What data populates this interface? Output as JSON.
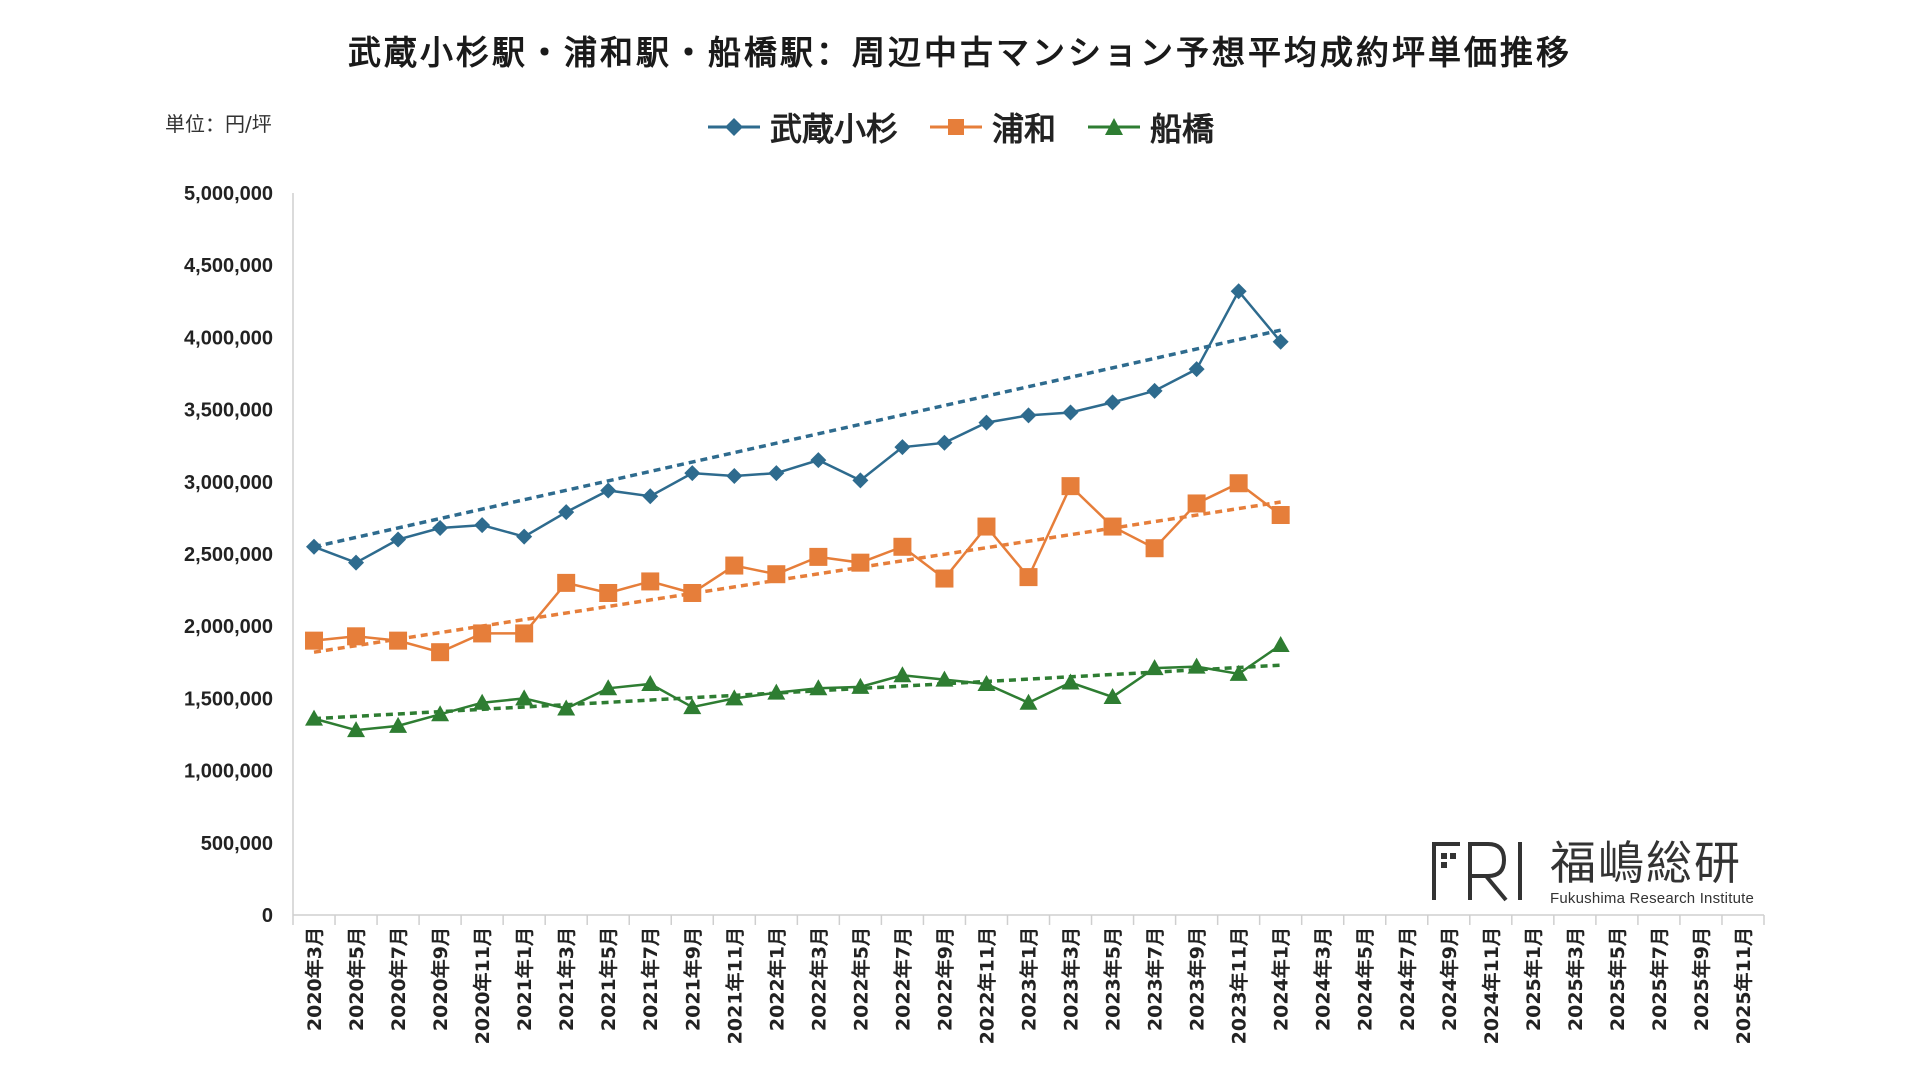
{
  "chart_data": {
    "type": "line",
    "title": "武蔵小杉駅・浦和駅・船橋駅：周辺中古マンション予想平均成約坪単価推移",
    "unit_label": "単位：円/坪",
    "ylim": [
      0,
      5000000
    ],
    "y_ticks": [
      "5,000,000",
      "4,500,000",
      "4,000,000",
      "3,500,000",
      "3,000,000",
      "2,500,000",
      "2,000,000",
      "1,500,000",
      "1,000,000",
      "500,000",
      "0"
    ],
    "y_tick_values": [
      5000000,
      4500000,
      4000000,
      3500000,
      3000000,
      2500000,
      2000000,
      1500000,
      1000000,
      500000,
      0
    ],
    "grid": false,
    "legend_position": "top-center",
    "trendlines": "linear, dotted",
    "categories": [
      "2020年3月",
      "2020年5月",
      "2020年7月",
      "2020年9月",
      "2020年11月",
      "2021年1月",
      "2021年3月",
      "2021年5月",
      "2021年7月",
      "2021年9月",
      "2021年11月",
      "2022年1月",
      "2022年3月",
      "2022年5月",
      "2022年7月",
      "2022年9月",
      "2022年11月",
      "2023年1月",
      "2023年3月",
      "2023年5月",
      "2023年7月",
      "2023年9月",
      "2023年11月",
      "2024年1月",
      "2024年3月",
      "2024年5月",
      "2024年7月",
      "2024年9月",
      "2024年11月",
      "2025年1月",
      "2025年3月",
      "2025年5月",
      "2025年7月",
      "2025年9月",
      "2025年11月"
    ],
    "series": [
      {
        "name": "武蔵小杉",
        "color": "#2e6b8e",
        "marker": "diamond",
        "points": [
          [
            0,
            2550000
          ],
          [
            1,
            2440000
          ],
          [
            2,
            2600000
          ],
          [
            3,
            2680000
          ],
          [
            4,
            2700000
          ],
          [
            5,
            2620000
          ],
          [
            6,
            2790000
          ],
          [
            7,
            2940000
          ],
          [
            8,
            2900000
          ],
          [
            9,
            3060000
          ],
          [
            10,
            3040000
          ],
          [
            11,
            3060000
          ],
          [
            12,
            3150000
          ],
          [
            13,
            3010000
          ],
          [
            14,
            3240000
          ],
          [
            15,
            3270000
          ],
          [
            16,
            3410000
          ],
          [
            17,
            3460000
          ],
          [
            18,
            3480000
          ],
          [
            19,
            3550000
          ],
          [
            20,
            3630000
          ],
          [
            21,
            3780000
          ],
          [
            22,
            4320000
          ],
          [
            23,
            3970000
          ]
        ],
        "trend": [
          2550000,
          4050000
        ]
      },
      {
        "name": "浦和",
        "color": "#e67e3a",
        "marker": "square",
        "points": [
          [
            0,
            1900000
          ],
          [
            1,
            1930000
          ],
          [
            2,
            1900000
          ],
          [
            3,
            1820000
          ],
          [
            4,
            1950000
          ],
          [
            5,
            1950000
          ],
          [
            6,
            2300000
          ],
          [
            7,
            2230000
          ],
          [
            8,
            2310000
          ],
          [
            9,
            2230000
          ],
          [
            10,
            2420000
          ],
          [
            11,
            2360000
          ],
          [
            12,
            2480000
          ],
          [
            13,
            2440000
          ],
          [
            14,
            2550000
          ],
          [
            15,
            2330000
          ],
          [
            16,
            2690000
          ],
          [
            17,
            2340000
          ],
          [
            18,
            2970000
          ],
          [
            19,
            2690000
          ],
          [
            20,
            2540000
          ],
          [
            21,
            2850000
          ],
          [
            22,
            2990000
          ],
          [
            23,
            2770000
          ]
        ],
        "trend": [
          1820000,
          2860000
        ]
      },
      {
        "name": "船橋",
        "color": "#2e7d32",
        "marker": "triangle",
        "points": [
          [
            0,
            1360000
          ],
          [
            1,
            1280000
          ],
          [
            2,
            1310000
          ],
          [
            3,
            1390000
          ],
          [
            4,
            1470000
          ],
          [
            5,
            1500000
          ],
          [
            6,
            1430000
          ],
          [
            7,
            1570000
          ],
          [
            8,
            1600000
          ],
          [
            9,
            1440000
          ],
          [
            10,
            1500000
          ],
          [
            11,
            1540000
          ],
          [
            12,
            1570000
          ],
          [
            13,
            1580000
          ],
          [
            14,
            1660000
          ],
          [
            15,
            1630000
          ],
          [
            16,
            1600000
          ],
          [
            17,
            1470000
          ],
          [
            18,
            1610000
          ],
          [
            19,
            1510000
          ],
          [
            20,
            1710000
          ],
          [
            21,
            1720000
          ],
          [
            22,
            1670000
          ],
          [
            23,
            1870000
          ]
        ],
        "trend": [
          1360000,
          1730000
        ]
      }
    ]
  },
  "logo": {
    "name": "福嶋総研",
    "sub": "Fukushima Research Institute"
  }
}
